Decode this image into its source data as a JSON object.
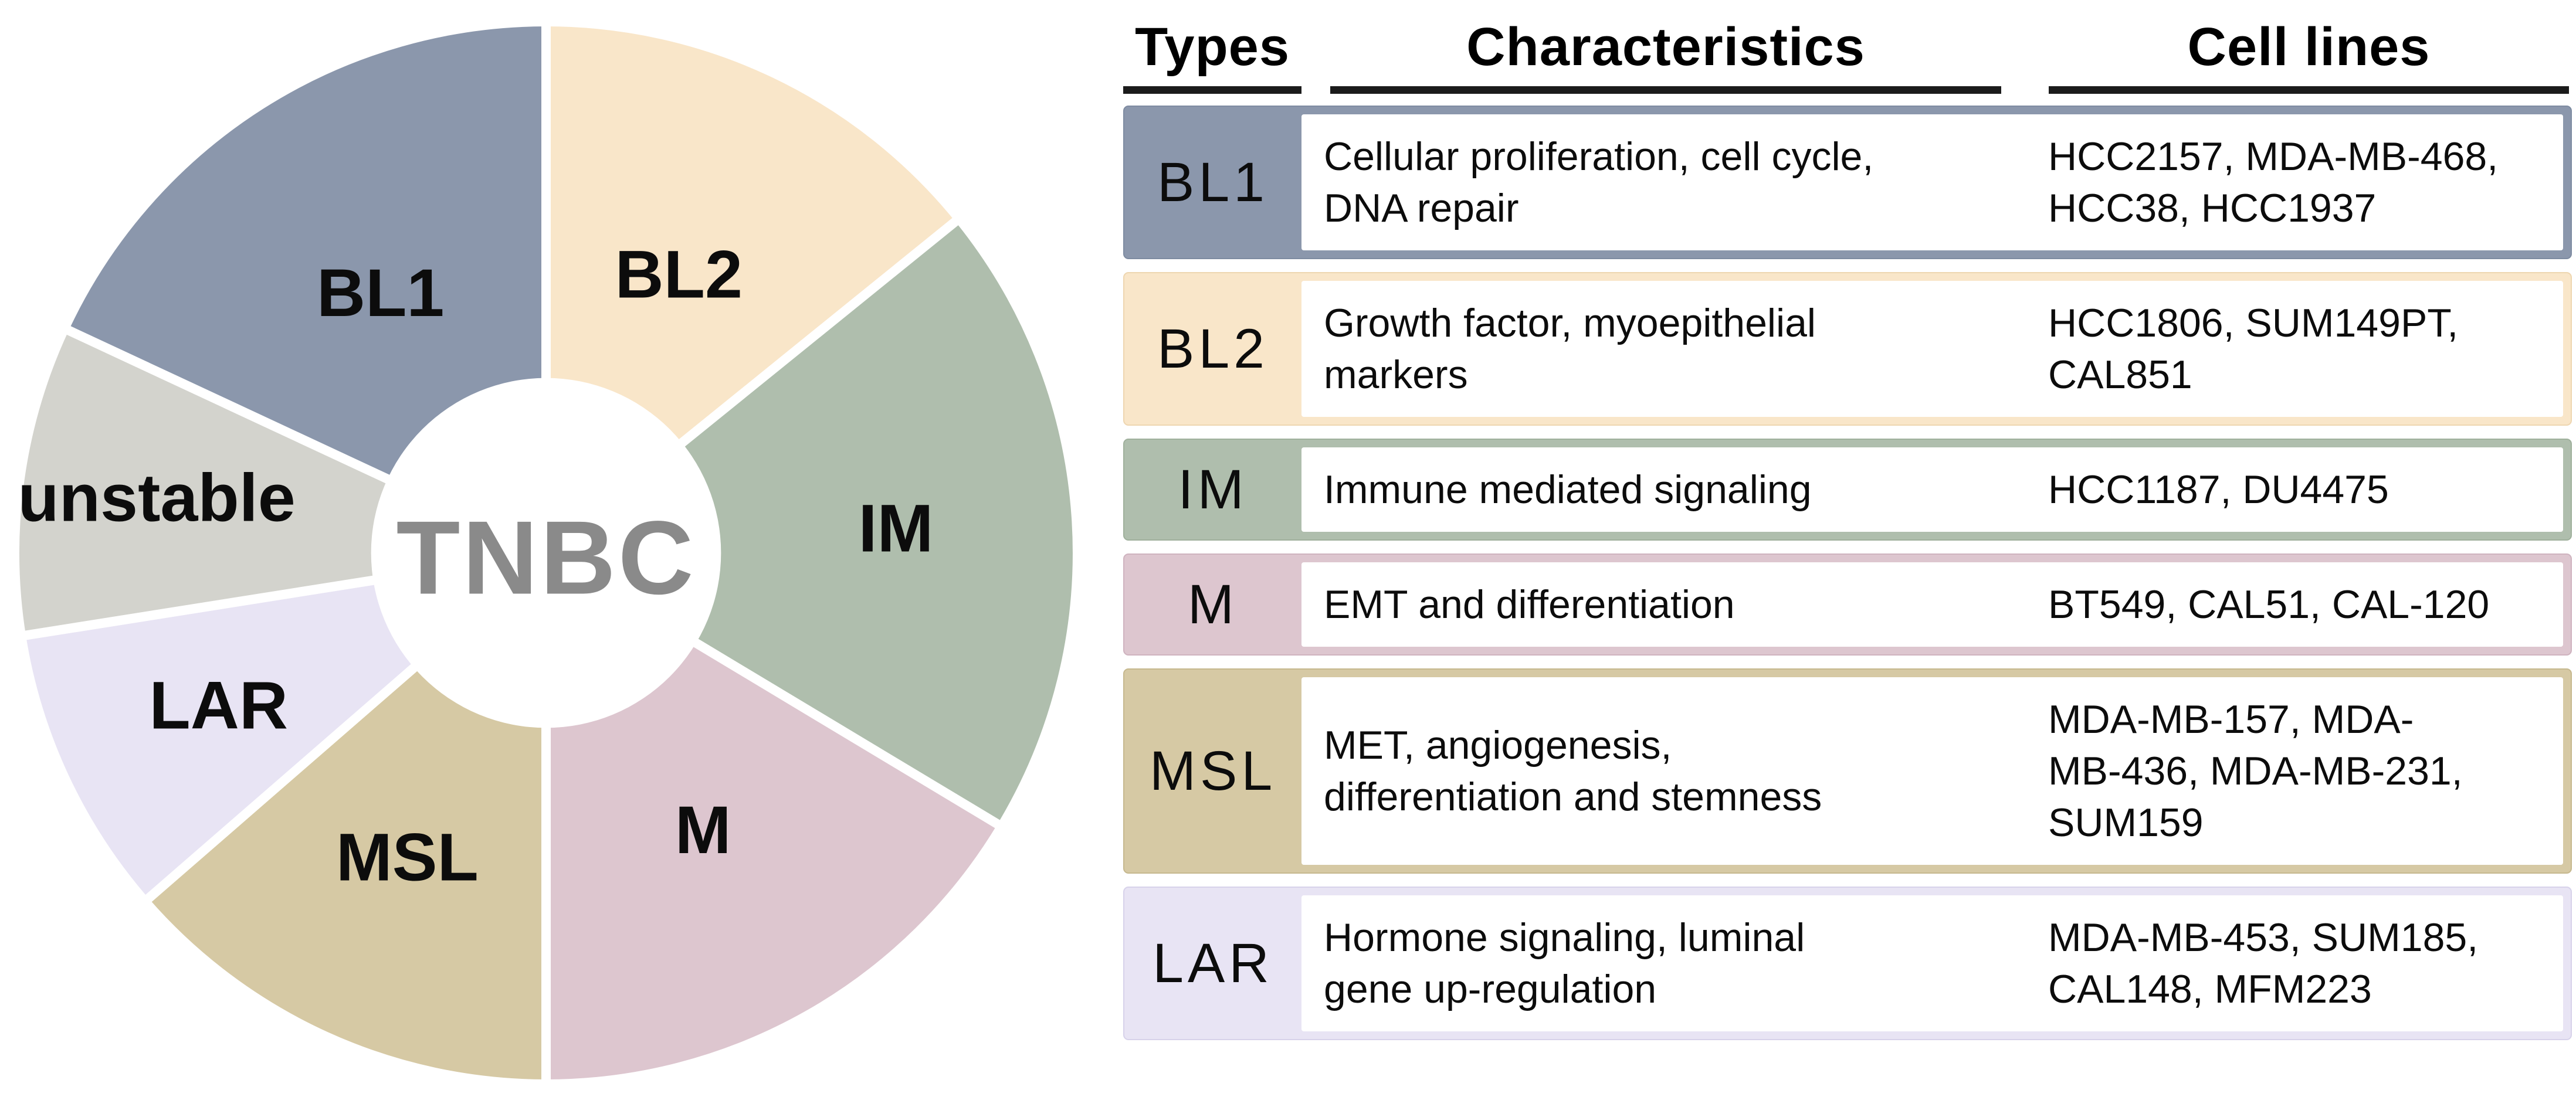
{
  "pie": {
    "center_label": "TNBC",
    "center_label_color": "#8a8a8a",
    "gap_color": "#ffffff",
    "segments": [
      {
        "label": "BL2",
        "color": "#f9e6c9",
        "start": 0,
        "end": 51,
        "label_radius": 0.58
      },
      {
        "label": "IM",
        "color": "#afbead",
        "start": 51,
        "end": 121,
        "label_radius": 0.66
      },
      {
        "label": "M",
        "color": "#ddc6cf",
        "start": 121,
        "end": 180,
        "label_radius": 0.6
      },
      {
        "label": "MSL",
        "color": "#d6c9a4",
        "start": 180,
        "end": 229,
        "label_radius": 0.63
      },
      {
        "label": "LAR",
        "color": "#e8e4f4",
        "start": 229,
        "end": 261,
        "label_radius": 0.68
      },
      {
        "label": "unstable",
        "color": "#d3d3cd",
        "start": 261,
        "end": 295,
        "label_radius": 0.74
      },
      {
        "label": "BL1",
        "color": "#8b97ac",
        "start": 295,
        "end": 360,
        "label_radius": 0.58
      }
    ]
  },
  "table": {
    "headers": {
      "types": "Types",
      "characteristics": "Characteristics",
      "cell_lines": "Cell lines"
    },
    "rows": [
      {
        "type": "BL1",
        "fill": "#8b97ac",
        "border": "#7e8ba1",
        "characteristics": "Cellular proliferation, cell cycle,\nDNA repair",
        "cell_lines": "HCC2157, MDA-MB-468,\nHCC38, HCC1937"
      },
      {
        "type": "BL2",
        "fill": "#f9e6c9",
        "border": "#eed6b0",
        "characteristics": "Growth factor, myoepithelial\nmarkers",
        "cell_lines": "HCC1806, SUM149PT,\nCAL851"
      },
      {
        "type": "IM",
        "fill": "#afbead",
        "border": "#9fb09c",
        "characteristics": "Immune mediated signaling",
        "cell_lines": "HCC1187, DU4475"
      },
      {
        "type": "M",
        "fill": "#ddc6cf",
        "border": "#cfb3bf",
        "characteristics": "EMT and differentiation",
        "cell_lines": "BT549, CAL51, CAL-120"
      },
      {
        "type": "MSL",
        "fill": "#d6c9a4",
        "border": "#c6b88e",
        "characteristics": "MET, angiogenesis,\ndifferentiation and stemness",
        "cell_lines": "MDA-MB-157, MDA-\nMB-436, MDA-MB-231,\nSUM159"
      },
      {
        "type": "LAR",
        "fill": "#e8e4f4",
        "border": "#d7d2ea",
        "characteristics": "Hormone signaling, luminal\ngene up-regulation",
        "cell_lines": "MDA-MB-453, SUM185,\nCAL148, MFM223"
      }
    ]
  }
}
